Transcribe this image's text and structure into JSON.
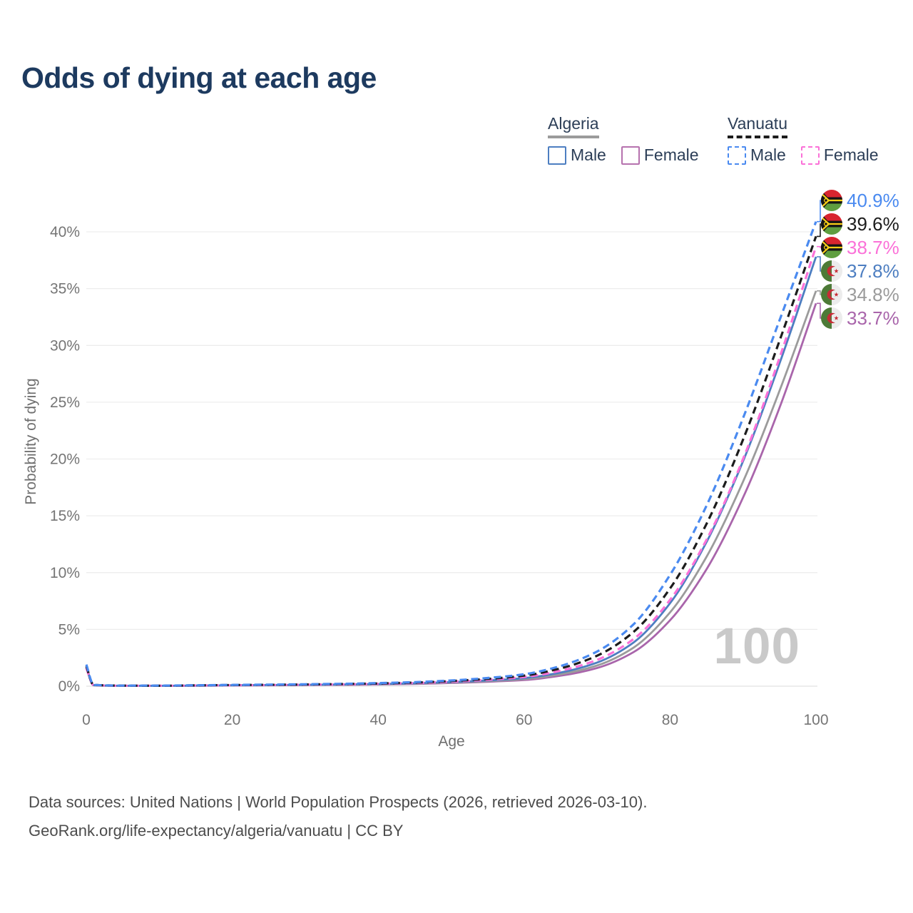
{
  "title": "Odds of dying at each age",
  "watermark": "100",
  "legend": {
    "groups": [
      {
        "label": "Algeria",
        "underline_dashed": false,
        "underline_color": "#9b9b9b",
        "items": [
          {
            "label": "Male",
            "color": "#4d7ec1",
            "dashed": false
          },
          {
            "label": "Female",
            "color": "#b672ae",
            "dashed": false
          }
        ]
      },
      {
        "label": "Vanuatu",
        "underline_dashed": true,
        "underline_color": "#1c1c1c",
        "items": [
          {
            "label": "Male",
            "color": "#4a8af0",
            "dashed": true
          },
          {
            "label": "Female",
            "color": "#fb71d8",
            "dashed": true
          }
        ]
      }
    ]
  },
  "footer": {
    "line1": "Data sources: United Nations | World Population Prospects (2026, retrieved 2026-03-10).",
    "line2": "GeoRank.org/life-expectancy/algeria/vanuatu | CC BY"
  },
  "icons": {
    "vanuatu_flag": {
      "red": "#d8252f",
      "green": "#5f9e3f",
      "black": "#151515",
      "yellow": "#fdd017"
    },
    "algeria_flag": {
      "green": "#4d7a37",
      "white": "#ececec",
      "red": "#c62b35"
    }
  },
  "chart_data": {
    "type": "line",
    "title": "Odds of dying at each age",
    "xlabel": "Age",
    "ylabel": "Probability of dying",
    "xlim": [
      0,
      100
    ],
    "ylim_pct": [
      0,
      42.5
    ],
    "xticks": [
      0,
      20,
      40,
      60,
      80,
      100
    ],
    "yticks_pct": [
      0,
      5,
      10,
      15,
      20,
      25,
      30,
      35,
      40
    ],
    "grid": "horizontal-only",
    "legend_position": "top-right",
    "ages": [
      0,
      1,
      5,
      10,
      15,
      20,
      25,
      30,
      35,
      40,
      45,
      50,
      55,
      60,
      65,
      70,
      75,
      80,
      85,
      90,
      95,
      100
    ],
    "series": [
      {
        "id": "vanuatu-male",
        "name": "Vanuatu Male",
        "country": "Vanuatu",
        "sex": "male",
        "color": "#4a8af0",
        "dashed": true,
        "flag": "vu",
        "end_label": "40.9%",
        "end_value_pct": 40.9,
        "values_pct": [
          1.9,
          0.12,
          0.05,
          0.05,
          0.08,
          0.11,
          0.14,
          0.17,
          0.21,
          0.27,
          0.36,
          0.5,
          0.72,
          1.05,
          1.78,
          3.05,
          5.45,
          9.8,
          15.9,
          23.6,
          32.2,
          40.9
        ]
      },
      {
        "id": "vanuatu-both",
        "name": "Vanuatu Both sexes",
        "country": "Vanuatu",
        "sex": "both",
        "color": "#1c1c1c",
        "dashed": true,
        "flag": "vu",
        "end_label": "39.6%",
        "end_value_pct": 39.6,
        "values_pct": [
          1.75,
          0.11,
          0.05,
          0.04,
          0.07,
          0.1,
          0.12,
          0.15,
          0.19,
          0.24,
          0.32,
          0.45,
          0.64,
          0.93,
          1.57,
          2.68,
          4.78,
          8.6,
          14.3,
          21.7,
          30.4,
          39.6
        ]
      },
      {
        "id": "vanuatu-female",
        "name": "Vanuatu Female",
        "country": "Vanuatu",
        "sex": "female",
        "color": "#fb71d8",
        "dashed": true,
        "flag": "vu",
        "end_label": "38.7%",
        "end_value_pct": 38.7,
        "values_pct": [
          1.6,
          0.1,
          0.04,
          0.04,
          0.06,
          0.08,
          0.1,
          0.13,
          0.16,
          0.21,
          0.28,
          0.39,
          0.56,
          0.81,
          1.36,
          2.32,
          4.15,
          7.6,
          12.9,
          20.0,
          28.9,
          38.7
        ]
      },
      {
        "id": "algeria-male",
        "name": "Algeria Male",
        "country": "Algeria",
        "sex": "male",
        "color": "#4d7ec1",
        "dashed": false,
        "flag": "dz",
        "end_label": "37.8%",
        "end_value_pct": 37.8,
        "values_pct": [
          1.75,
          0.09,
          0.04,
          0.03,
          0.05,
          0.08,
          0.1,
          0.12,
          0.15,
          0.19,
          0.26,
          0.36,
          0.5,
          0.71,
          1.2,
          2.08,
          3.85,
          7.3,
          12.7,
          19.8,
          28.4,
          37.8
        ]
      },
      {
        "id": "algeria-both",
        "name": "Algeria Both sexes",
        "country": "Algeria",
        "sex": "both",
        "color": "#9b9b9b",
        "dashed": false,
        "flag": "dz",
        "end_label": "34.8%",
        "end_value_pct": 34.8,
        "values_pct": [
          1.65,
          0.08,
          0.03,
          0.03,
          0.05,
          0.07,
          0.09,
          0.11,
          0.13,
          0.17,
          0.23,
          0.32,
          0.44,
          0.62,
          1.05,
          1.82,
          3.4,
          6.5,
          11.4,
          18.0,
          26.0,
          34.8
        ]
      },
      {
        "id": "algeria-female",
        "name": "Algeria Female",
        "country": "Algeria",
        "sex": "female",
        "color": "#a965ab",
        "dashed": false,
        "flag": "dz",
        "end_label": "33.7%",
        "end_value_pct": 33.7,
        "values_pct": [
          1.55,
          0.08,
          0.03,
          0.03,
          0.04,
          0.06,
          0.08,
          0.1,
          0.12,
          0.15,
          0.2,
          0.28,
          0.39,
          0.54,
          0.92,
          1.6,
          3.0,
          5.8,
          10.3,
          16.6,
          24.5,
          33.7
        ]
      }
    ]
  }
}
